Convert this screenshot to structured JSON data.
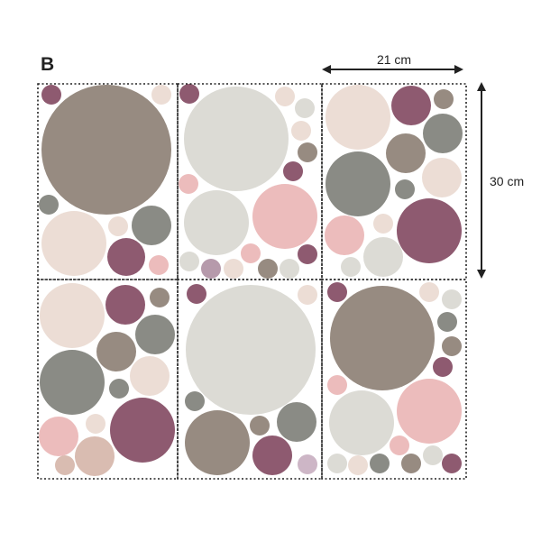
{
  "label": "B",
  "width_label": "21 cm",
  "height_label": "30 cm",
  "colors": {
    "taupe": "#978b81",
    "light-gray": "#dcdbd5",
    "gray": "#8a8b85",
    "plum": "#8e5a70",
    "pink": "#ecbcbc",
    "blush": "#ecddd5",
    "rose-beige": "#d9bcb1",
    "mauve": "#b69aab",
    "lilac": "#cdb6c6",
    "frame": "#222222",
    "text": "#222222"
  }
}
